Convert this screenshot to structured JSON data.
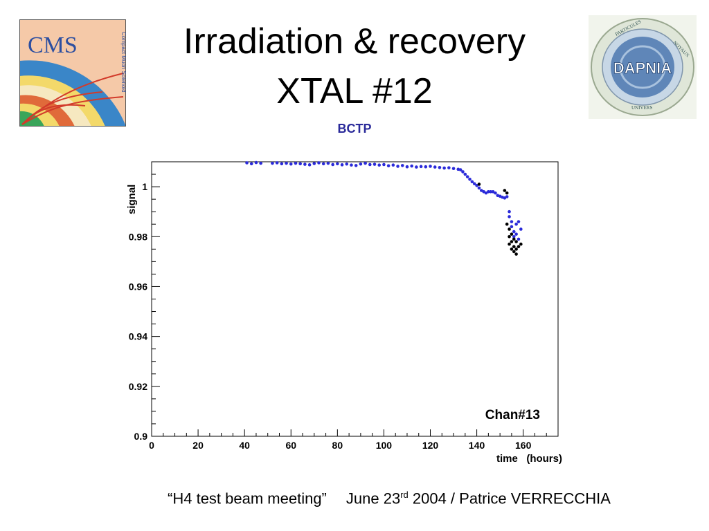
{
  "slide": {
    "title_line1": "Irradiation & recovery",
    "title_line2": "XTAL #12",
    "subtitle": "BCTP",
    "footer": {
      "meeting": "“H4 test beam meeting”",
      "date_prefix": "June 23",
      "date_sup": "rd",
      "date_suffix": " 2004 / Patrice VERRECCHIA"
    }
  },
  "logos": {
    "left": {
      "text": "CMS",
      "vertical_text": "Compact Muon Solenoid"
    },
    "right": {
      "text": "DAPNIA",
      "ring_top": "PARTICULES",
      "ring_right": "NOYAUX",
      "ring_bottom": "UNIVERS"
    }
  },
  "chart_data": {
    "type": "scatter",
    "title": "",
    "xlabel": "time   (hours)",
    "ylabel": "signal",
    "annotation": "Chan#13",
    "xlim": [
      0,
      175
    ],
    "ylim": [
      0.9,
      1.01
    ],
    "xticks": [
      0,
      20,
      40,
      60,
      80,
      100,
      120,
      140,
      160
    ],
    "yticks": [
      0.9,
      0.92,
      0.94,
      0.96,
      0.98,
      1
    ],
    "ytick_labels": [
      "0.9",
      "0.92",
      "0.94",
      "0.96",
      "0.98",
      "1"
    ],
    "grid": false,
    "colors": {
      "blue_series": "#2b2bd9",
      "black_series": "#000000"
    },
    "series": [
      {
        "color": "blue",
        "points": [
          [
            41,
            1.0096
          ],
          [
            43,
            1.0092
          ],
          [
            45,
            1.0097
          ],
          [
            47,
            1.0094
          ],
          [
            49,
            1.0099
          ],
          [
            52,
            1.0094
          ],
          [
            54,
            1.0096
          ],
          [
            56,
            1.0092
          ],
          [
            58,
            1.0094
          ],
          [
            60,
            1.0091
          ],
          [
            62,
            1.0094
          ],
          [
            64,
            1.0092
          ],
          [
            66,
            1.009
          ],
          [
            68,
            1.0088
          ],
          [
            70,
            1.0093
          ],
          [
            72,
            1.0096
          ],
          [
            74,
            1.0092
          ],
          [
            76,
            1.0094
          ],
          [
            78,
            1.0089
          ],
          [
            80,
            1.0092
          ],
          [
            82,
            1.0088
          ],
          [
            84,
            1.0091
          ],
          [
            86,
            1.0087
          ],
          [
            88,
            1.0085
          ],
          [
            90,
            1.0091
          ],
          [
            92,
            1.0094
          ],
          [
            94,
            1.0089
          ],
          [
            96,
            1.009
          ],
          [
            98,
            1.0087
          ],
          [
            100,
            1.0089
          ],
          [
            102,
            1.0084
          ],
          [
            104,
            1.0087
          ],
          [
            106,
            1.0082
          ],
          [
            108,
            1.0085
          ],
          [
            110,
            1.008
          ],
          [
            112,
            1.0083
          ],
          [
            114,
            1.0079
          ],
          [
            116,
            1.0081
          ],
          [
            118,
            1.008
          ],
          [
            120,
            1.0082
          ],
          [
            122,
            1.0079
          ],
          [
            124,
            1.0077
          ],
          [
            126,
            1.0075
          ],
          [
            128,
            1.0076
          ],
          [
            130,
            1.0073
          ],
          [
            132,
            1.007
          ],
          [
            133,
            1.0068
          ],
          [
            134,
            1.006
          ],
          [
            135,
            1.005
          ],
          [
            136,
            1.004
          ],
          [
            137,
            1.003
          ],
          [
            138,
            1.002
          ],
          [
            139,
            1.0012
          ],
          [
            140,
            1.0005
          ],
          [
            141,
            0.9995
          ],
          [
            142,
            0.9985
          ],
          [
            143,
            0.998
          ],
          [
            144,
            0.9975
          ],
          [
            145,
            0.998
          ],
          [
            146,
            0.998
          ],
          [
            147,
            0.998
          ],
          [
            148,
            0.9975
          ],
          [
            149,
            0.9965
          ],
          [
            150,
            0.9962
          ],
          [
            151,
            0.9958
          ],
          [
            152,
            0.9955
          ],
          [
            153,
            0.996
          ],
          [
            154,
            0.99
          ],
          [
            154,
            0.988
          ],
          [
            155,
            0.986
          ],
          [
            155,
            0.984
          ],
          [
            156,
            0.982
          ],
          [
            156,
            0.98
          ],
          [
            157,
            0.985
          ],
          [
            157,
            0.981
          ],
          [
            158,
            0.986
          ],
          [
            158,
            0.979
          ],
          [
            159,
            0.983
          ]
        ]
      },
      {
        "color": "black",
        "points": [
          [
            141,
            1.001
          ],
          [
            152,
            0.9985
          ],
          [
            153,
            0.9975
          ],
          [
            153,
            0.985
          ],
          [
            154,
            0.983
          ],
          [
            154,
            0.98
          ],
          [
            154,
            0.977
          ],
          [
            155,
            0.981
          ],
          [
            155,
            0.978
          ],
          [
            155,
            0.975
          ],
          [
            156,
            0.979
          ],
          [
            156,
            0.976
          ],
          [
            156,
            0.974
          ],
          [
            157,
            0.978
          ],
          [
            157,
            0.975
          ],
          [
            157,
            0.973
          ],
          [
            158,
            0.976
          ],
          [
            159,
            0.977
          ]
        ]
      }
    ]
  }
}
